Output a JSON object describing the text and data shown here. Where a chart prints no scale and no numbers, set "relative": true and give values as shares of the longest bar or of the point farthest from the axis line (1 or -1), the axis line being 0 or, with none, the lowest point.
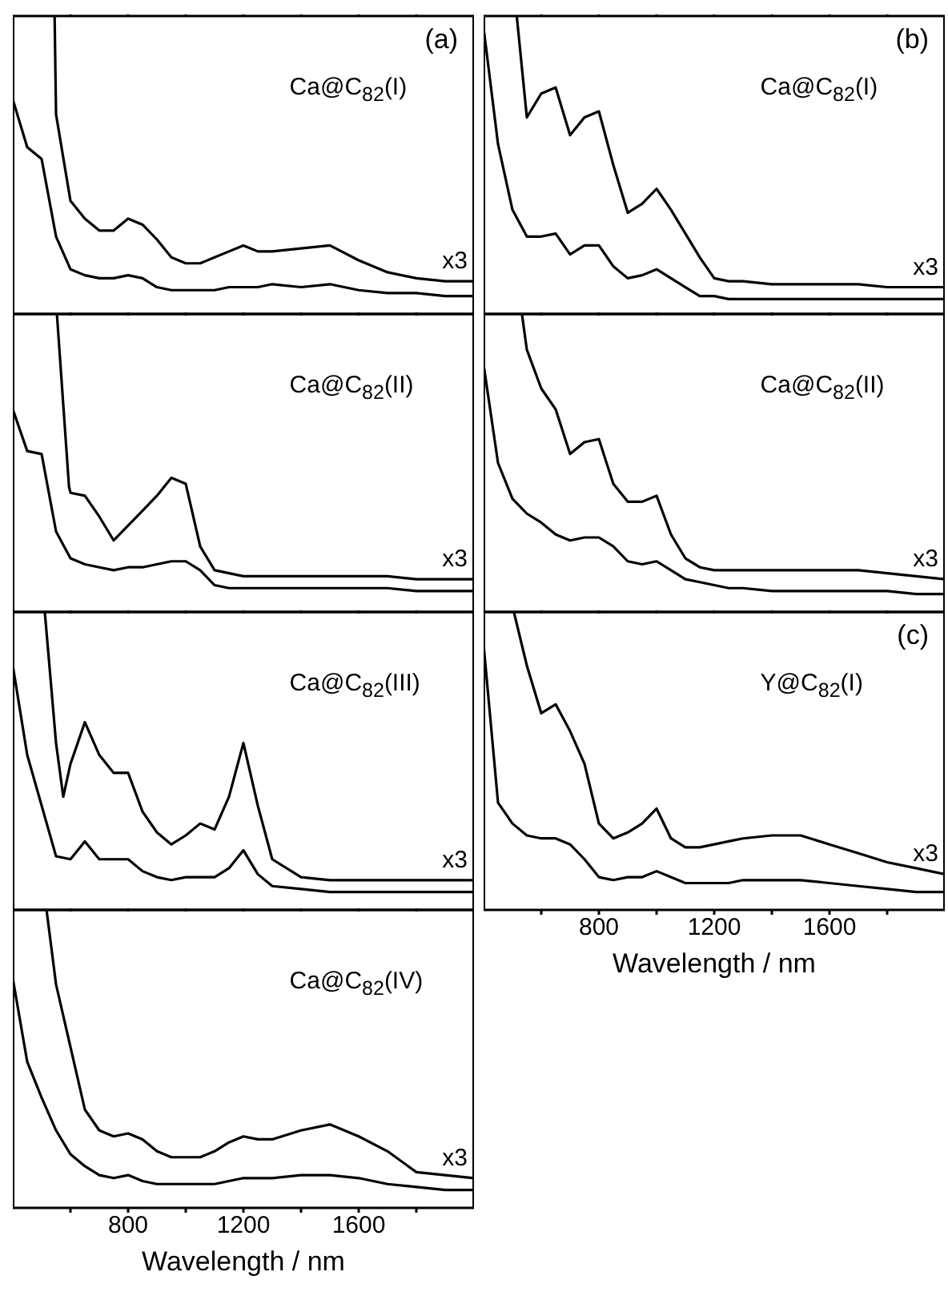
{
  "chart_data": [
    {
      "type": "line",
      "relative": true,
      "title": "Ca@C$_{82}$(I)",
      "annotations": [
        "(a)"
      ],
      "tick_labels": false,
      "marker": "none",
      "xlim": [
        400,
        2000
      ],
      "xticks": [
        {
          "value": 600,
          "label": null
        },
        800,
        {
          "value": 1000,
          "label": null
        },
        1200,
        {
          "value": 1400,
          "label": null
        },
        1600,
        {
          "value": 1800,
          "label": null
        }
      ],
      "x": [
        400,
        450,
        500,
        550,
        600,
        650,
        700,
        750,
        800,
        850,
        900,
        950,
        1000,
        1050,
        1100,
        1150,
        1200,
        1250,
        1300,
        1400,
        1500,
        1600,
        1700,
        1800,
        1900,
        2000
      ],
      "series": [
        {
          "name": "x3",
          "color": "#000000",
          "x": [
            545,
            550,
            600,
            650,
            700,
            750,
            800,
            850,
            900,
            950,
            1000,
            1050,
            1100,
            1150,
            1200,
            1250,
            1300,
            1400,
            1500,
            1600,
            1700,
            1800,
            1900,
            2000
          ],
          "values": [
            1,
            0.67,
            0.38,
            0.32,
            0.28,
            0.28,
            0.32,
            0.3,
            0.25,
            0.19,
            0.17,
            0.17,
            0.19,
            0.21,
            0.23,
            0.21,
            0.21,
            0.22,
            0.23,
            0.18,
            0.14,
            0.12,
            0.11,
            0.11
          ]
        },
        {
          "color": "#000000",
          "values": [
            0.72,
            0.56,
            0.52,
            0.26,
            0.15,
            0.13,
            0.12,
            0.12,
            0.13,
            0.12,
            0.09,
            0.08,
            0.08,
            0.08,
            0.08,
            0.09,
            0.09,
            0.09,
            0.1,
            0.09,
            0.1,
            0.08,
            0.07,
            0.07,
            0.06,
            0.06
          ]
        }
      ]
    },
    {
      "type": "line",
      "relative": true,
      "title": "Ca@C$_{82}$(I)",
      "annotations": [
        "(b)"
      ],
      "tick_labels": false,
      "marker": "none",
      "xlim": [
        400,
        2000
      ],
      "xticks": [
        {
          "value": 600,
          "label": null
        },
        800,
        {
          "value": 1000,
          "label": null
        },
        1200,
        {
          "value": 1400,
          "label": null
        },
        1600,
        {
          "value": 1800,
          "label": null
        }
      ],
      "x": [
        400,
        450,
        500,
        550,
        600,
        650,
        700,
        750,
        800,
        850,
        900,
        950,
        1000,
        1050,
        1100,
        1150,
        1200,
        1250,
        1300,
        1400,
        1500,
        1600,
        1700,
        1800,
        1900,
        2000
      ],
      "series": [
        {
          "name": "x3",
          "color": "#000000",
          "x": [
            515,
            550,
            600,
            650,
            700,
            750,
            800,
            850,
            900,
            950,
            1000,
            1050,
            1100,
            1150,
            1200,
            1250,
            1300,
            1400,
            1500,
            1600,
            1700,
            1800,
            1900,
            2000
          ],
          "values": [
            1,
            0.66,
            0.74,
            0.76,
            0.6,
            0.66,
            0.68,
            0.5,
            0.34,
            0.37,
            0.42,
            0.35,
            0.27,
            0.19,
            0.12,
            0.11,
            0.11,
            0.1,
            0.1,
            0.1,
            0.1,
            0.09,
            0.09,
            0.09
          ]
        },
        {
          "color": "#000000",
          "values": [
            0.96,
            0.57,
            0.35,
            0.26,
            0.26,
            0.27,
            0.2,
            0.23,
            0.23,
            0.16,
            0.12,
            0.13,
            0.15,
            0.12,
            0.09,
            0.06,
            0.06,
            0.05,
            0.05,
            0.05,
            0.05,
            0.05,
            0.05,
            0.05,
            0.05,
            0.05
          ]
        }
      ]
    },
    {
      "type": "line",
      "relative": true,
      "title": "Ca@C$_{82}$(II)",
      "tick_labels": false,
      "marker": "none",
      "xlim": [
        400,
        2000
      ],
      "xticks": [
        {
          "value": 600,
          "label": null
        },
        800,
        {
          "value": 1000,
          "label": null
        },
        1200,
        {
          "value": 1400,
          "label": null
        },
        1600,
        {
          "value": 1800,
          "label": null
        }
      ],
      "x": [
        400,
        450,
        500,
        550,
        600,
        650,
        700,
        750,
        800,
        850,
        900,
        950,
        1000,
        1050,
        1100,
        1150,
        1200,
        1250,
        1300,
        1400,
        1500,
        1600,
        1700,
        1800,
        1900,
        2000
      ],
      "series": [
        {
          "name": "x3",
          "color": "#000000",
          "x": [
            553,
            595,
            600,
            650,
            700,
            750,
            800,
            850,
            900,
            950,
            1000,
            1050,
            1100,
            1150,
            1200,
            1250,
            1300,
            1400,
            1500,
            1600,
            1700,
            1800,
            1900,
            2000
          ],
          "values": [
            1,
            0.42,
            0.4,
            0.39,
            0.32,
            0.24,
            0.29,
            0.34,
            0.39,
            0.45,
            0.43,
            0.22,
            0.14,
            0.13,
            0.12,
            0.12,
            0.12,
            0.12,
            0.12,
            0.12,
            0.12,
            0.11,
            0.11,
            0.11
          ]
        },
        {
          "color": "#000000",
          "values": [
            0.68,
            0.54,
            0.53,
            0.27,
            0.18,
            0.16,
            0.15,
            0.14,
            0.15,
            0.15,
            0.16,
            0.17,
            0.17,
            0.14,
            0.09,
            0.08,
            0.08,
            0.08,
            0.08,
            0.08,
            0.08,
            0.08,
            0.08,
            0.07,
            0.07,
            0.07
          ]
        }
      ]
    },
    {
      "type": "line",
      "relative": true,
      "title": "Ca@C$_{82}$(II)",
      "tick_labels": false,
      "marker": "none",
      "xlim": [
        400,
        2000
      ],
      "xticks": [
        {
          "value": 600,
          "label": null
        },
        800,
        {
          "value": 1000,
          "label": null
        },
        1200,
        {
          "value": 1400,
          "label": null
        },
        1600,
        {
          "value": 1800,
          "label": null
        }
      ],
      "x": [
        400,
        450,
        500,
        550,
        600,
        650,
        700,
        750,
        800,
        850,
        900,
        950,
        1000,
        1050,
        1100,
        1150,
        1200,
        1250,
        1300,
        1400,
        1500,
        1600,
        1700,
        1800,
        1900,
        2000
      ],
      "series": [
        {
          "name": "x3",
          "color": "#000000",
          "x": [
            533,
            550,
            600,
            650,
            700,
            750,
            800,
            850,
            900,
            950,
            1000,
            1050,
            1100,
            1150,
            1200,
            1250,
            1300,
            1400,
            1500,
            1600,
            1700,
            1800,
            1900,
            2000
          ],
          "values": [
            1,
            0.88,
            0.75,
            0.68,
            0.53,
            0.57,
            0.58,
            0.43,
            0.37,
            0.37,
            0.39,
            0.26,
            0.18,
            0.15,
            0.14,
            0.14,
            0.14,
            0.14,
            0.14,
            0.14,
            0.14,
            0.13,
            0.12,
            0.11
          ]
        },
        {
          "color": "#000000",
          "values": [
            0.83,
            0.5,
            0.38,
            0.33,
            0.3,
            0.26,
            0.24,
            0.25,
            0.25,
            0.22,
            0.17,
            0.16,
            0.17,
            0.14,
            0.11,
            0.1,
            0.09,
            0.08,
            0.08,
            0.07,
            0.07,
            0.07,
            0.07,
            0.07,
            0.06,
            0.06
          ]
        }
      ]
    },
    {
      "type": "line",
      "relative": true,
      "title": "Ca@C$_{82}$(III)",
      "tick_labels": false,
      "marker": "none",
      "xlim": [
        400,
        2000
      ],
      "xticks": [
        {
          "value": 600,
          "label": null
        },
        800,
        {
          "value": 1000,
          "label": null
        },
        1200,
        {
          "value": 1400,
          "label": null
        },
        1600,
        {
          "value": 1800,
          "label": null
        }
      ],
      "x": [
        400,
        450,
        500,
        550,
        600,
        650,
        700,
        750,
        800,
        850,
        900,
        950,
        1000,
        1050,
        1100,
        1150,
        1200,
        1250,
        1300,
        1400,
        1500,
        1600,
        1700,
        1800,
        1900,
        2000
      ],
      "series": [
        {
          "name": "x3",
          "color": "#000000",
          "x": [
            511,
            550,
            575,
            600,
            650,
            700,
            750,
            800,
            850,
            900,
            950,
            1000,
            1050,
            1100,
            1150,
            1200,
            1250,
            1300,
            1400,
            1500,
            1600,
            1700,
            1800,
            1900,
            2000
          ],
          "values": [
            1,
            0.56,
            0.38,
            0.49,
            0.63,
            0.52,
            0.46,
            0.46,
            0.33,
            0.26,
            0.22,
            0.25,
            0.29,
            0.27,
            0.38,
            0.56,
            0.35,
            0.17,
            0.11,
            0.1,
            0.1,
            0.1,
            0.1,
            0.1,
            0.1
          ]
        },
        {
          "color": "#000000",
          "values": [
            0.82,
            0.52,
            0.35,
            0.18,
            0.17,
            0.23,
            0.17,
            0.17,
            0.17,
            0.13,
            0.11,
            0.1,
            0.11,
            0.11,
            0.11,
            0.14,
            0.2,
            0.12,
            0.08,
            0.07,
            0.06,
            0.06,
            0.06,
            0.06,
            0.06,
            0.06
          ]
        }
      ]
    },
    {
      "type": "line",
      "relative": true,
      "title": "Y@C$_{82}$(I)",
      "annotations": [
        "(c)"
      ],
      "xlabel": "Wavelength / nm",
      "tick_labels": "x",
      "marker": "none",
      "xlim": [
        400,
        2000
      ],
      "xticks": [
        {
          "value": 600,
          "label": null
        },
        800,
        {
          "value": 1000,
          "label": null
        },
        1200,
        {
          "value": 1400,
          "label": null
        },
        1600,
        {
          "value": 1800,
          "label": null
        }
      ],
      "x": [
        400,
        450,
        500,
        550,
        600,
        650,
        700,
        750,
        800,
        850,
        900,
        950,
        1000,
        1050,
        1100,
        1150,
        1200,
        1250,
        1300,
        1400,
        1500,
        1600,
        1700,
        1800,
        1900,
        2000
      ],
      "series": [
        {
          "name": "x3",
          "color": "#000000",
          "x": [
            505,
            550,
            600,
            650,
            700,
            750,
            800,
            850,
            900,
            950,
            1000,
            1050,
            1100,
            1150,
            1200,
            1250,
            1300,
            1400,
            1500,
            1600,
            1700,
            1800,
            1900,
            2000
          ],
          "values": [
            1,
            0.82,
            0.66,
            0.69,
            0.6,
            0.49,
            0.29,
            0.24,
            0.26,
            0.29,
            0.34,
            0.24,
            0.21,
            0.21,
            0.22,
            0.23,
            0.24,
            0.25,
            0.25,
            0.22,
            0.19,
            0.16,
            0.14,
            0.12
          ]
        },
        {
          "color": "#000000",
          "values": [
            0.89,
            0.36,
            0.29,
            0.25,
            0.24,
            0.24,
            0.22,
            0.17,
            0.11,
            0.1,
            0.11,
            0.11,
            0.13,
            0.11,
            0.09,
            0.09,
            0.09,
            0.09,
            0.1,
            0.1,
            0.1,
            0.09,
            0.08,
            0.07,
            0.06,
            0.06
          ]
        }
      ]
    },
    {
      "type": "line",
      "relative": true,
      "title": "Ca@C$_{82}$(IV)",
      "xlabel": "Wavelength / nm",
      "tick_labels": "x",
      "marker": "none",
      "xlim": [
        400,
        2000
      ],
      "xticks": [
        {
          "value": 600,
          "label": null
        },
        800,
        {
          "value": 1000,
          "label": null
        },
        1200,
        {
          "value": 1400,
          "label": null
        },
        1600,
        {
          "value": 1800,
          "label": null
        }
      ],
      "x": [
        400,
        450,
        500,
        550,
        600,
        650,
        700,
        750,
        800,
        850,
        900,
        950,
        1000,
        1050,
        1100,
        1150,
        1200,
        1250,
        1300,
        1400,
        1500,
        1600,
        1700,
        1800,
        1900,
        2000
      ],
      "series": [
        {
          "name": "x3",
          "color": "#000000",
          "x": [
            517,
            550,
            600,
            650,
            700,
            750,
            800,
            850,
            900,
            950,
            1000,
            1050,
            1100,
            1150,
            1200,
            1250,
            1300,
            1400,
            1500,
            1600,
            1700,
            1800,
            1900,
            2000
          ],
          "values": [
            1,
            0.75,
            0.54,
            0.33,
            0.26,
            0.24,
            0.25,
            0.23,
            0.19,
            0.17,
            0.17,
            0.17,
            0.19,
            0.22,
            0.24,
            0.23,
            0.23,
            0.26,
            0.28,
            0.24,
            0.19,
            0.12,
            0.11,
            0.1
          ]
        },
        {
          "color": "#000000",
          "values": [
            0.77,
            0.49,
            0.37,
            0.26,
            0.18,
            0.14,
            0.11,
            0.1,
            0.11,
            0.09,
            0.08,
            0.08,
            0.08,
            0.08,
            0.08,
            0.09,
            0.1,
            0.1,
            0.1,
            0.11,
            0.11,
            0.1,
            0.08,
            0.07,
            0.06,
            0.06
          ]
        }
      ]
    }
  ]
}
